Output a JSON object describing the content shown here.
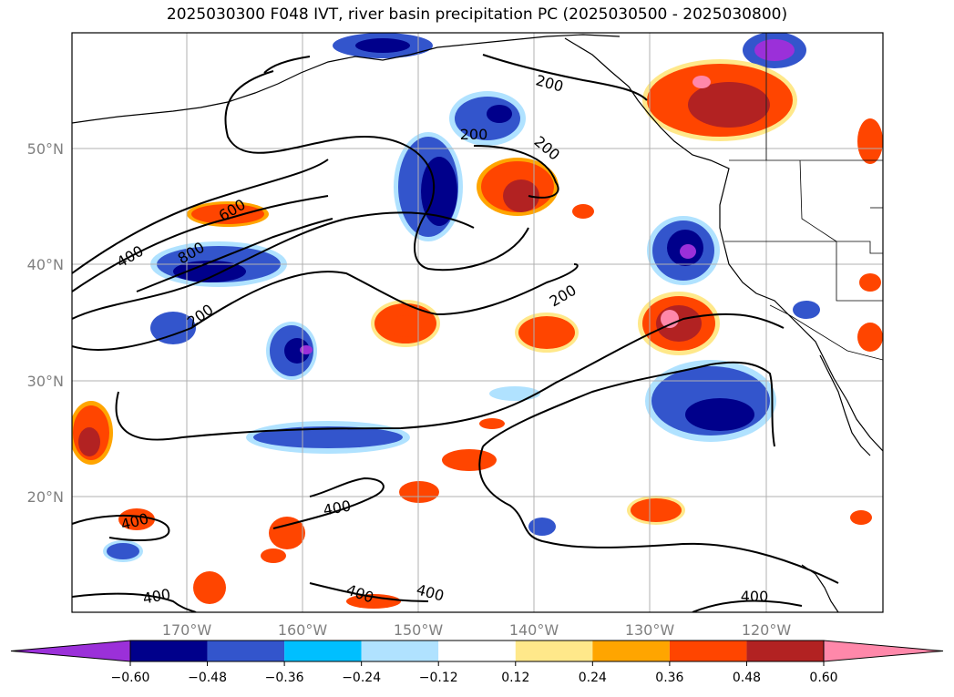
{
  "title": "2025030300 F048 IVT, river basin precipitation PC (2025030500 - 2025030800)",
  "map": {
    "lat_labels": [
      "50°N",
      "40°N",
      "30°N",
      "20°N"
    ],
    "lon_labels": [
      "170°W",
      "160°W",
      "150°W",
      "140°W",
      "130°W",
      "120°W"
    ]
  },
  "ivt_contours": {
    "levels": [
      200,
      400,
      600,
      800
    ],
    "labels": [
      "200",
      "200",
      "200",
      "200",
      "400",
      "600",
      "800",
      "200",
      "400",
      "400",
      "400",
      "400",
      "400",
      "400"
    ]
  },
  "colorbar": {
    "ticks": [
      "−0.60",
      "−0.48",
      "−0.36",
      "−0.24",
      "−0.12",
      "0.12",
      "0.24",
      "0.36",
      "0.48",
      "0.60"
    ],
    "colors": [
      "#9b30d9",
      "#00008b",
      "#3355cc",
      "#00bfff",
      "#b0e2ff",
      "#ffffff",
      "#ffe88a",
      "#ffa500",
      "#ff4500",
      "#b22222",
      "#ff88aa"
    ],
    "extend": "both"
  }
}
